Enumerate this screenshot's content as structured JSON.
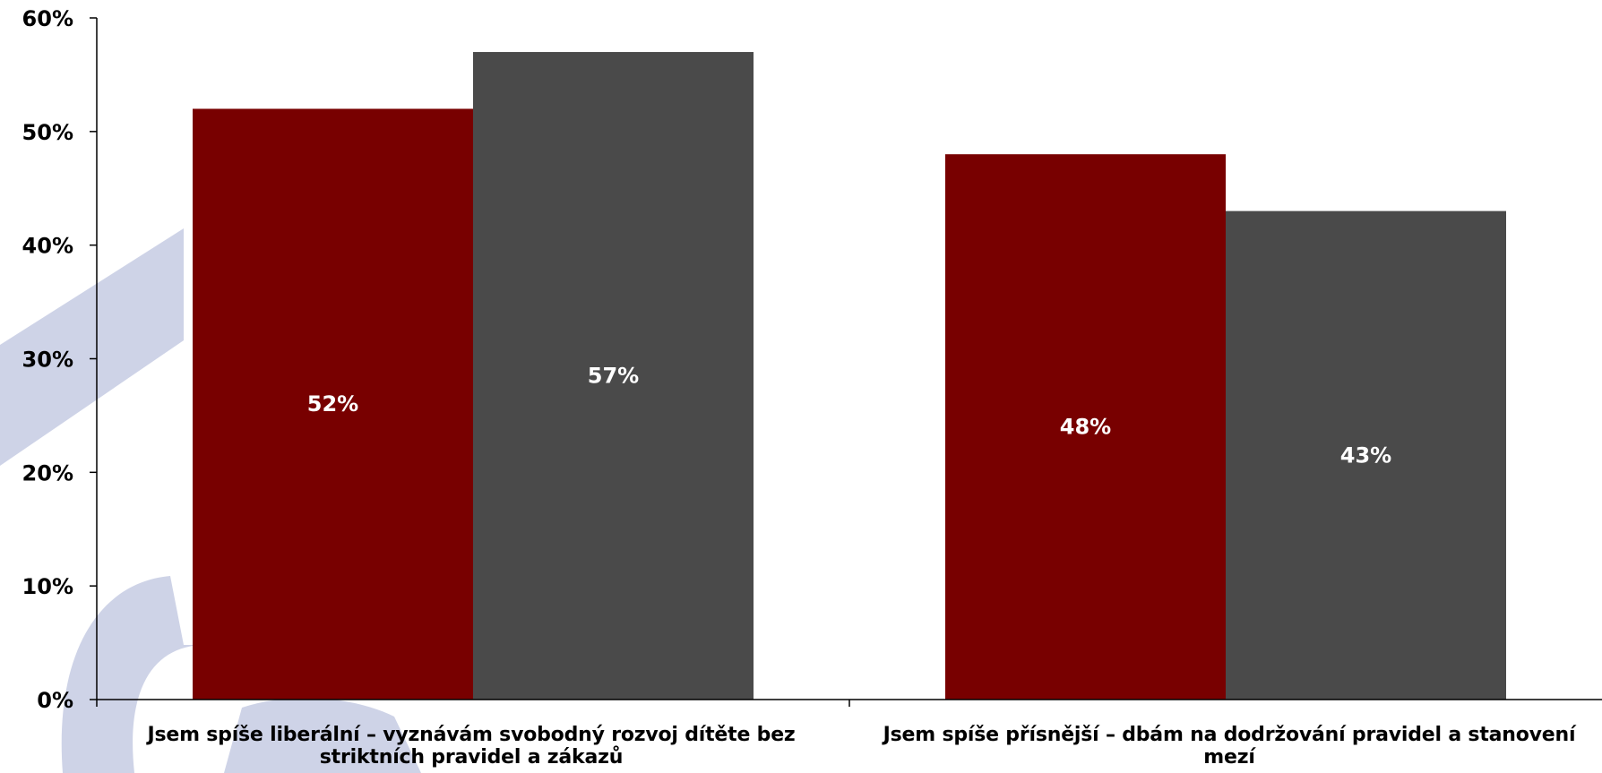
{
  "chart_data": {
    "type": "bar",
    "categories": [
      "Jsem spíše liberální – vyznávám svobodný rozvoj dítěte bez striktních pravidel a zákazů",
      "Jsem spíše přísnější – dbám na dodržování pravidel a stanovení mezí"
    ],
    "series": [
      {
        "values": [
          52,
          48
        ],
        "labels": [
          "52%",
          "48%"
        ],
        "color": "#780000"
      },
      {
        "values": [
          57,
          43
        ],
        "labels": [
          "57%",
          "43%"
        ],
        "color": "#4a4a4a"
      }
    ],
    "y_ticks": [
      "0%",
      "10%",
      "20%",
      "30%",
      "40%",
      "50%",
      "60%"
    ],
    "ylim": [
      0,
      60
    ],
    "grid": false,
    "legend": "none",
    "watermark_color": "#c5cbe3"
  }
}
